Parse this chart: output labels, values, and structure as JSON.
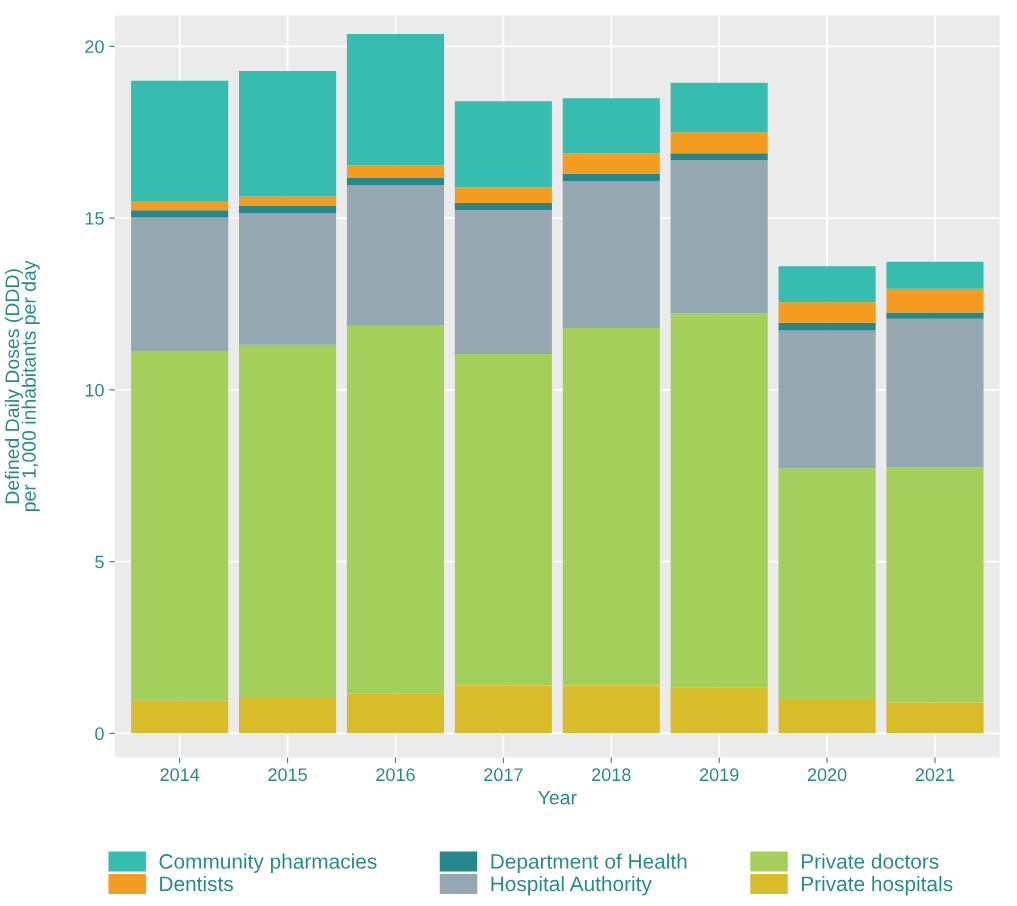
{
  "chart_data": {
    "type": "bar",
    "stacked": true,
    "xlabel": "Year",
    "ylabel": "Defined Daily Doses (DDD)\nper 1,000 inhabitants per day",
    "categories": [
      "2014",
      "2015",
      "2016",
      "2017",
      "2018",
      "2019",
      "2020",
      "2021"
    ],
    "series": [
      {
        "name": "Private hospitals",
        "color": "#d9bc29",
        "values": [
          0.95,
          1.03,
          1.15,
          1.39,
          1.39,
          1.33,
          0.97,
          0.9
        ]
      },
      {
        "name": "Private doctors",
        "color": "#a4cf5a",
        "values": [
          10.18,
          10.28,
          10.74,
          9.65,
          10.41,
          10.89,
          6.75,
          6.85
        ]
      },
      {
        "name": "Hospital Authority",
        "color": "#95a7b0",
        "values": [
          3.89,
          3.83,
          4.07,
          4.19,
          4.28,
          4.46,
          4.01,
          4.32
        ]
      },
      {
        "name": "Department of Health",
        "color": "#26888a",
        "values": [
          0.21,
          0.21,
          0.21,
          0.21,
          0.21,
          0.21,
          0.22,
          0.18
        ]
      },
      {
        "name": "Dentists",
        "color": "#f39c1f",
        "values": [
          0.27,
          0.28,
          0.36,
          0.46,
          0.6,
          0.61,
          0.6,
          0.69
        ]
      },
      {
        "name": "Community pharmacies",
        "color": "#36bdb0",
        "values": [
          3.5,
          3.65,
          3.83,
          2.5,
          1.6,
          1.44,
          1.05,
          0.79
        ]
      }
    ],
    "ylim": [
      -0.7,
      20.9
    ],
    "yticks": [
      0,
      5,
      10,
      15,
      20
    ],
    "grid": true,
    "legend": "bottom"
  }
}
